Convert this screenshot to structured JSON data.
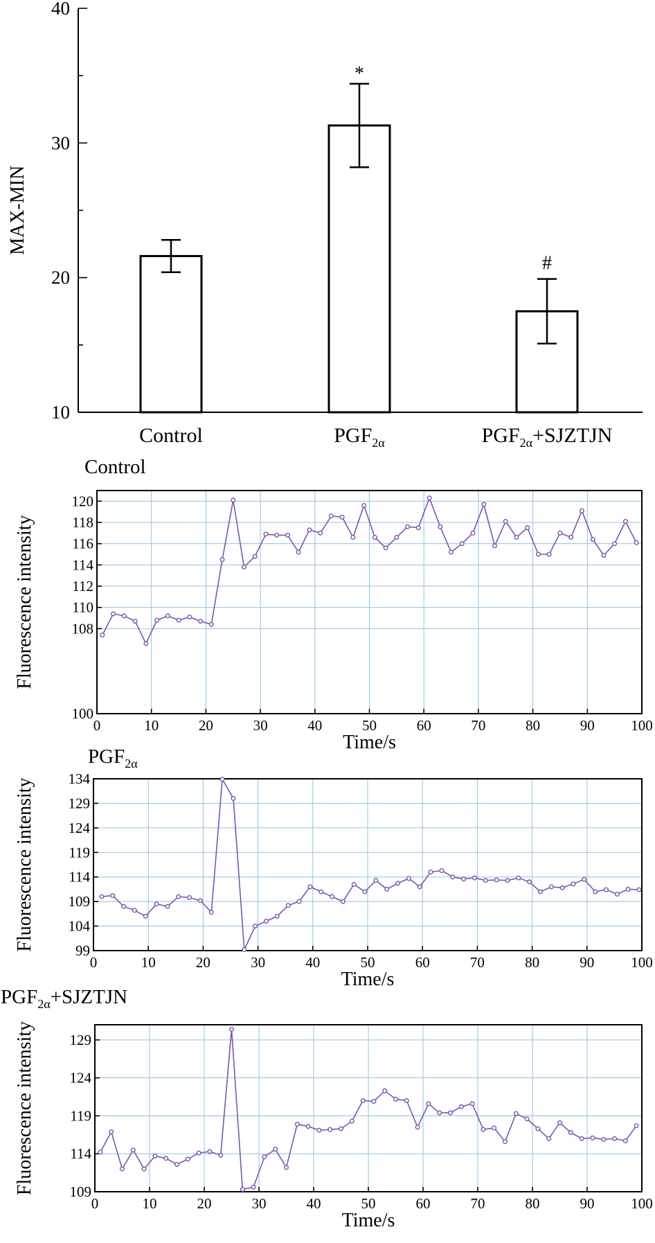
{
  "chart_data": [
    {
      "type": "bar",
      "title": "",
      "xlabel": "",
      "ylabel": "MAX-MIN",
      "ylim": [
        10,
        40
      ],
      "yticks": [
        10,
        20,
        30,
        40
      ],
      "categories": [
        {
          "base": "Control",
          "sub": "",
          "suffix": ""
        },
        {
          "base": "PGF",
          "sub": "2α",
          "suffix": ""
        },
        {
          "base": "PGF",
          "sub": "2α",
          "suffix": "+SJZTJN"
        }
      ],
      "values": [
        21.6,
        31.3,
        17.5
      ],
      "errors": [
        1.2,
        3.1,
        2.4
      ],
      "annotations": [
        "",
        "*",
        "#"
      ],
      "grid": false,
      "bar_fill": "#ffffff",
      "bar_edge": "#000000"
    },
    {
      "type": "line",
      "title": {
        "base": "Control",
        "sub": "",
        "suffix": ""
      },
      "xlabel": "Time/s",
      "ylabel": "Fluorescence intensity",
      "xlim": [
        0,
        100
      ],
      "ylim": [
        100,
        121
      ],
      "xticks": [
        0,
        10,
        20,
        30,
        40,
        50,
        60,
        70,
        80,
        90,
        100
      ],
      "yticks": [
        100,
        108,
        110,
        112,
        114,
        116,
        118,
        120
      ],
      "grid": true,
      "line_color": "#7a55b0",
      "grid_color": "#8ec3e0",
      "x": [
        1,
        3,
        5,
        7,
        9,
        11,
        13,
        15,
        17,
        19,
        21,
        23,
        25,
        27,
        29,
        31,
        33,
        35,
        37,
        39,
        41,
        43,
        45,
        47,
        49,
        51,
        53,
        55,
        57,
        59,
        61,
        63,
        65,
        67,
        69,
        71,
        73,
        75,
        77,
        79,
        81,
        83,
        85,
        87,
        89,
        91,
        93,
        95,
        97,
        99
      ],
      "y": [
        107.4,
        109.4,
        109.2,
        108.7,
        106.6,
        108.8,
        109.2,
        108.8,
        109.1,
        108.7,
        108.4,
        114.5,
        120.1,
        113.8,
        114.8,
        116.9,
        116.8,
        116.8,
        115.2,
        117.3,
        117.0,
        118.6,
        118.5,
        116.6,
        119.6,
        116.6,
        115.6,
        116.6,
        117.6,
        117.5,
        120.3,
        117.6,
        115.2,
        116.0,
        117.0,
        119.7,
        115.8,
        118.1,
        116.6,
        117.5,
        115.0,
        115.0,
        117.0,
        116.6,
        119.1,
        116.4,
        114.9,
        116.0,
        118.1,
        116.1
      ]
    },
    {
      "type": "line",
      "title": {
        "base": "PGF",
        "sub": "2α",
        "suffix": ""
      },
      "xlabel": "Time/s",
      "ylabel": "Fluorescence intensity",
      "xlim": [
        0,
        100
      ],
      "ylim": [
        99,
        134
      ],
      "xticks": [
        0,
        10,
        20,
        30,
        40,
        50,
        60,
        70,
        80,
        90,
        100
      ],
      "yticks": [
        99,
        104,
        109,
        114,
        119,
        124,
        129,
        134
      ],
      "grid": true,
      "line_color": "#7a55b0",
      "grid_color": "#8ec3e0",
      "x": [
        1.5,
        3.5,
        5.5,
        7.5,
        9.5,
        11.5,
        13.5,
        15.5,
        17.5,
        19.5,
        21.5,
        23.5,
        25.5,
        27.5,
        29.5,
        31.5,
        33.5,
        35.5,
        37.5,
        39.5,
        41.5,
        43.5,
        45.5,
        47.5,
        49.5,
        51.5,
        53.5,
        55.5,
        57.5,
        59.5,
        61.5,
        63.5,
        65.5,
        67.5,
        69.5,
        71.5,
        73.5,
        75.5,
        77.5,
        79.5,
        81.5,
        83.5,
        85.5,
        87.5,
        89.5,
        91.5,
        93.5,
        95.5,
        97.5,
        99.5
      ],
      "y": [
        110.0,
        110.2,
        108.0,
        107.2,
        106.0,
        108.5,
        108.0,
        110.0,
        109.8,
        109.2,
        106.8,
        133.9,
        130.0,
        99.2,
        104.0,
        105.0,
        106.0,
        108.2,
        109.0,
        112.0,
        111.0,
        110.0,
        109.0,
        112.5,
        111.0,
        113.3,
        111.5,
        112.7,
        113.7,
        112.0,
        115.0,
        115.3,
        114.0,
        113.6,
        113.8,
        113.3,
        113.4,
        113.3,
        113.8,
        113.0,
        111.0,
        112.0,
        111.8,
        112.6,
        113.5,
        111.0,
        111.4,
        110.5,
        111.5,
        111.4
      ]
    },
    {
      "type": "line",
      "title": {
        "base": "PGF",
        "sub": "2α",
        "suffix": "+SJZTJN"
      },
      "xlabel": "Time/s",
      "ylabel": "Fluorescence intensity",
      "xlim": [
        0,
        100
      ],
      "ylim": [
        109,
        131
      ],
      "xticks": [
        0,
        10,
        20,
        30,
        40,
        50,
        60,
        70,
        80,
        90,
        100
      ],
      "yticks": [
        109,
        114,
        119,
        124,
        129
      ],
      "grid": true,
      "line_color": "#7a55b0",
      "grid_color": "#8ec3e0",
      "x": [
        1,
        3,
        5,
        7,
        9,
        11,
        13,
        15,
        17,
        19,
        21,
        23,
        25,
        27,
        29,
        31,
        33,
        35,
        37,
        39,
        41,
        43,
        45,
        47,
        49,
        51,
        53,
        55,
        57,
        59,
        61,
        63,
        65,
        67,
        69,
        71,
        73,
        75,
        77,
        79,
        81,
        83,
        85,
        87,
        89,
        91,
        93,
        95,
        97,
        99
      ],
      "y": [
        114.2,
        116.9,
        112.0,
        114.5,
        112.0,
        113.7,
        113.4,
        112.6,
        113.3,
        114.1,
        114.3,
        113.8,
        130.4,
        109.3,
        109.6,
        113.6,
        114.6,
        112.2,
        117.9,
        117.6,
        117.1,
        117.2,
        117.3,
        118.3,
        121.0,
        120.9,
        122.3,
        121.2,
        121.0,
        117.5,
        120.6,
        119.4,
        119.4,
        120.2,
        120.6,
        117.2,
        117.4,
        115.6,
        119.3,
        118.6,
        117.3,
        116.0,
        118.1,
        116.8,
        116.0,
        116.1,
        115.9,
        116.0,
        115.7,
        117.7
      ]
    }
  ]
}
